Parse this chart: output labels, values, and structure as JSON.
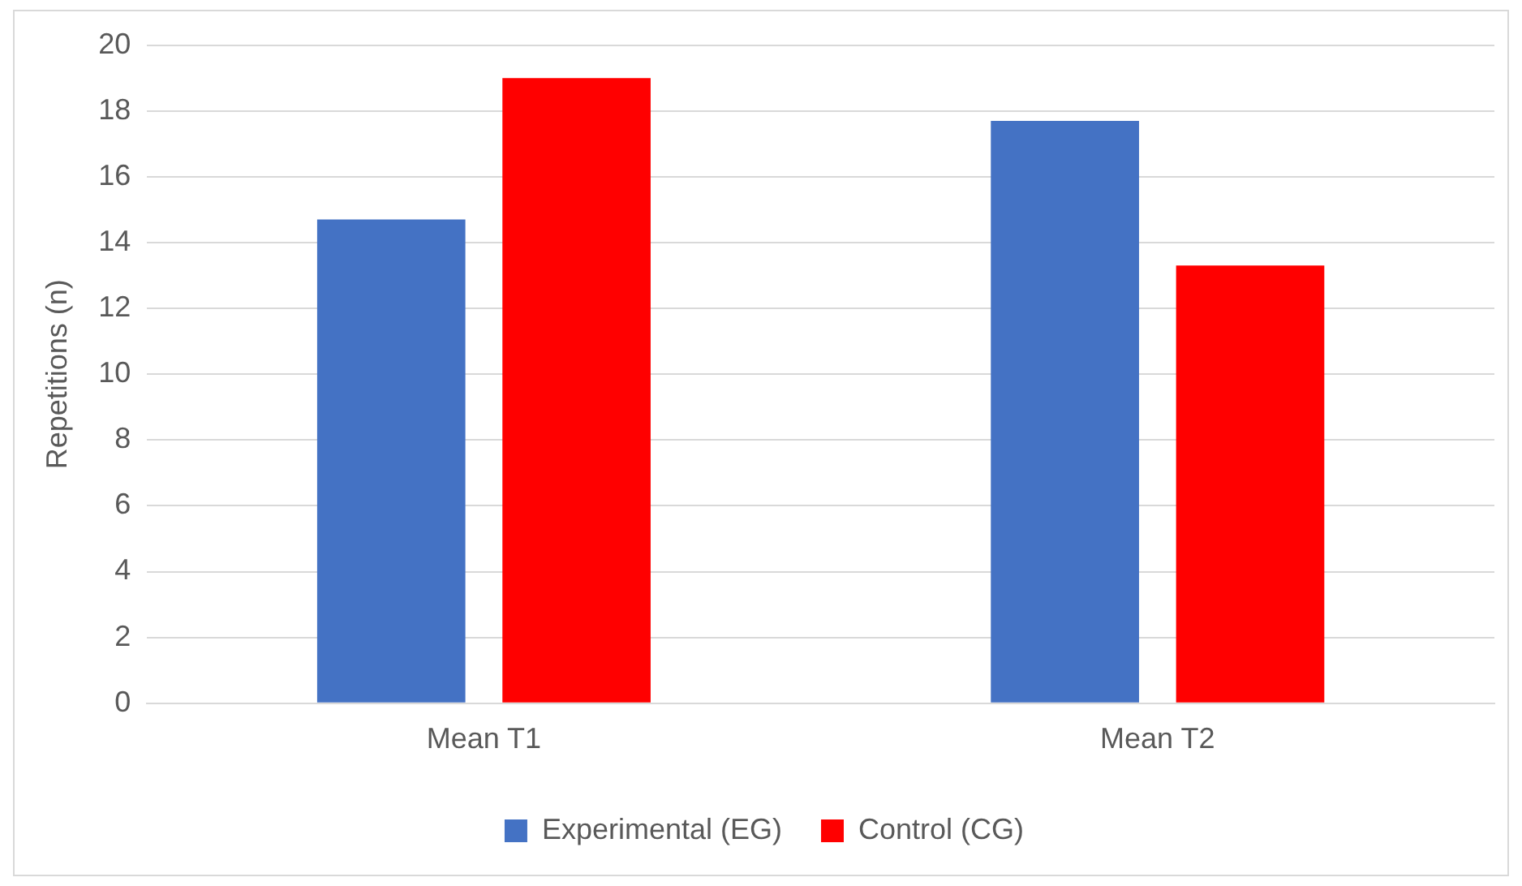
{
  "chart_data": {
    "type": "bar",
    "ylabel": "Repetitions (n)",
    "categories": [
      "Mean T1",
      "Mean T2"
    ],
    "series": [
      {
        "name": "Experimental (EG)",
        "color": "#4472c4",
        "values": [
          14.7,
          17.7
        ]
      },
      {
        "name": "Control (CG)",
        "color": "#ff0000",
        "values": [
          19.0,
          13.3
        ]
      }
    ],
    "ylim": [
      0,
      20
    ],
    "yticks": [
      0,
      2,
      4,
      6,
      8,
      10,
      12,
      14,
      16,
      18,
      20
    ],
    "grid": "y",
    "legend": "bottom"
  }
}
